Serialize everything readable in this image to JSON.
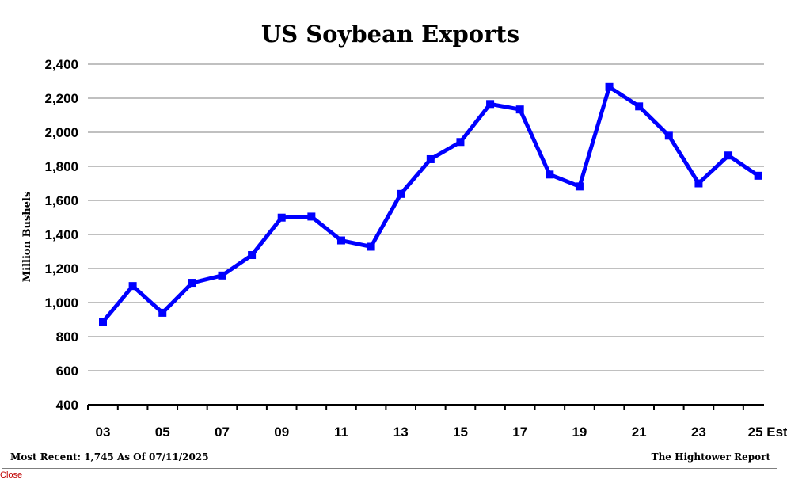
{
  "chart_data": {
    "type": "line",
    "title": "US Soybean Exports",
    "ylabel": "Million Bushels",
    "xlabel": "",
    "ylim": [
      400,
      2400
    ],
    "yticks": [
      400,
      600,
      800,
      1000,
      1200,
      1400,
      1600,
      1800,
      2000,
      2200,
      2400
    ],
    "ytick_labels": [
      "400",
      "600",
      "800",
      "1,000",
      "1,200",
      "1,400",
      "1,600",
      "1,800",
      "2,000",
      "2,200",
      "2,400"
    ],
    "x": [
      "03",
      "04",
      "05",
      "06",
      "07",
      "08",
      "09",
      "10",
      "11",
      "12",
      "13",
      "14",
      "15",
      "16",
      "17",
      "18",
      "19",
      "20",
      "21",
      "22",
      "23",
      "24",
      "25 Est"
    ],
    "xtick_labels": [
      "03",
      "05",
      "07",
      "09",
      "11",
      "13",
      "15",
      "17",
      "19",
      "21",
      "23",
      "25 Est"
    ],
    "series": [
      {
        "values": [
          887,
          1097,
          940,
          1116,
          1159,
          1279,
          1499,
          1505,
          1365,
          1328,
          1638,
          1842,
          1943,
          2166,
          2134,
          1752,
          1682,
          2266,
          2152,
          1980,
          1700,
          1864,
          1745
        ]
      }
    ],
    "grid": true,
    "colors": {
      "line": "#0000ff",
      "grid": "#808080"
    }
  },
  "footer": {
    "left": "Most Recent: 1,745 As Of 07/11/2025",
    "right": "The Hightower Report"
  },
  "close_label": "Close"
}
